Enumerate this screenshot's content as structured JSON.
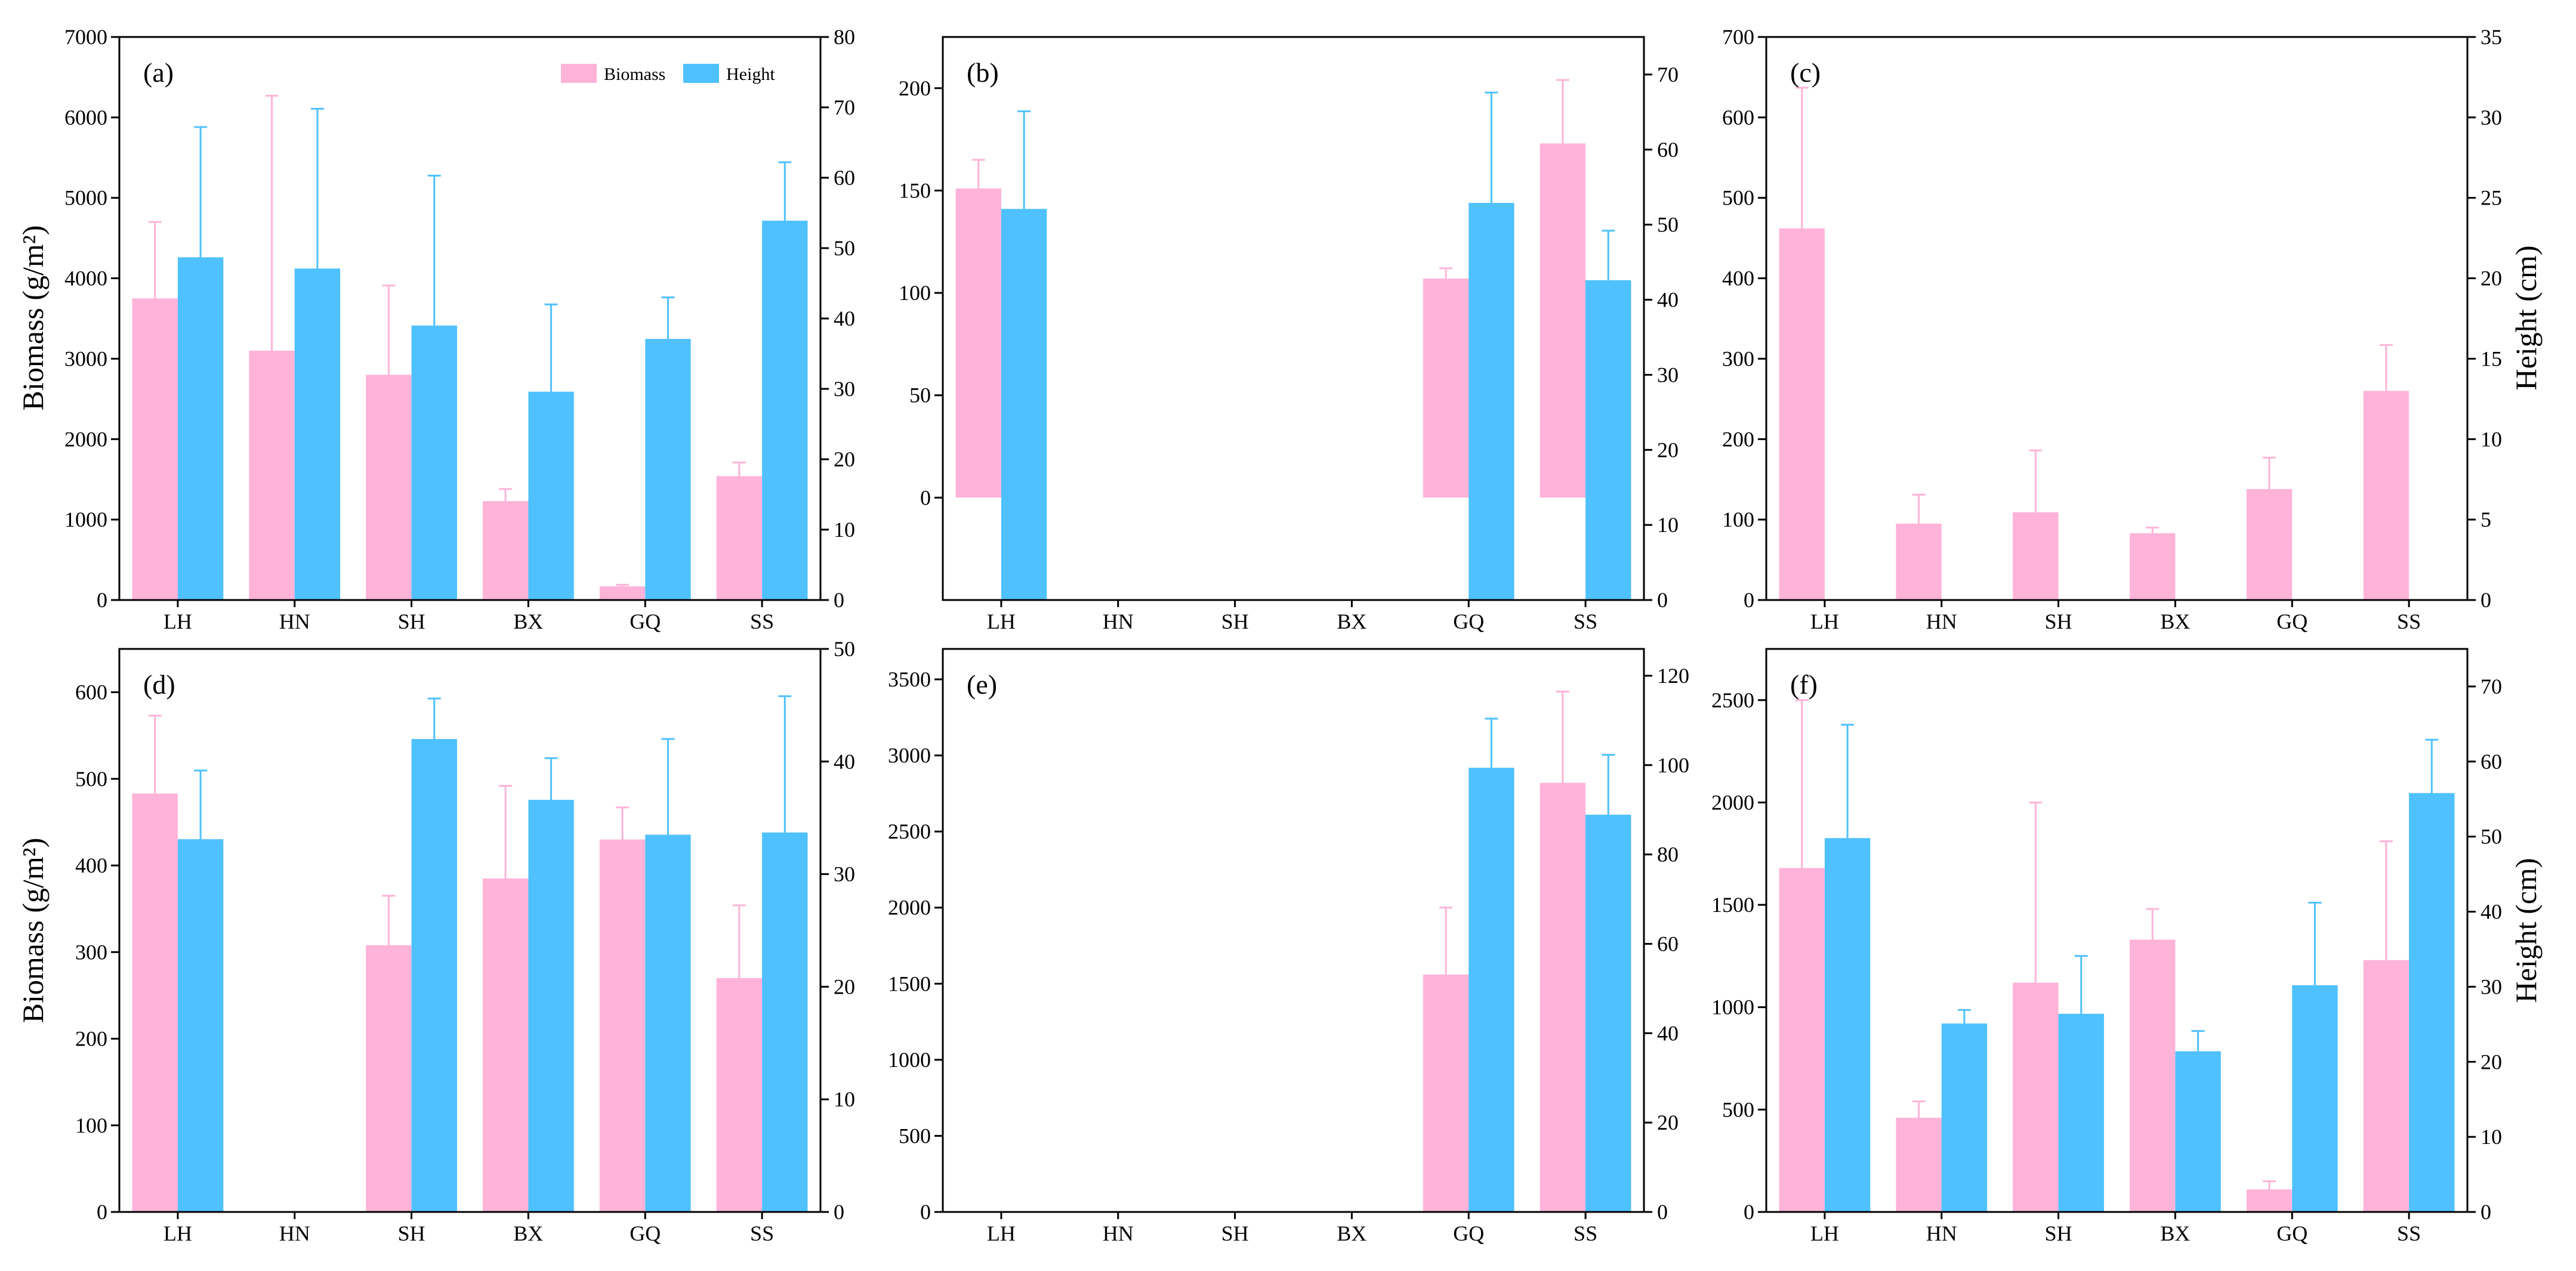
{
  "colors": {
    "biomass": "#FFB3D9",
    "height": "#4FC1FF",
    "axis": "#000000"
  },
  "legend": {
    "position": "top-right",
    "panel": 0,
    "biomass": "Biomass",
    "height": "Height"
  },
  "axis_titles": {
    "top_left_ylabel": "Biomass (g/m²)",
    "bottom_left_ylabel": "Biomass (g/m²)",
    "top_right_ylabel": "Height (cm)",
    "bottom_right_ylabel": "Height (cm)"
  },
  "chart_data": [
    {
      "type": "bar",
      "label": "(a)",
      "categories": [
        "LH",
        "HN",
        "SH",
        "BX",
        "GQ",
        "SS"
      ],
      "ylim": [
        0,
        7000
      ],
      "yticks": [
        0,
        1000,
        2000,
        3000,
        4000,
        5000,
        6000,
        7000
      ],
      "y2lim": [
        0,
        80
      ],
      "y2ticks": [
        0,
        10,
        20,
        30,
        40,
        50,
        60,
        70,
        80
      ],
      "series": [
        {
          "name": "Biomass",
          "axis": "left",
          "values": [
            3750,
            3100,
            2800,
            1230,
            170,
            1540
          ],
          "errors": [
            950,
            3170,
            1110,
            150,
            20,
            170
          ]
        },
        {
          "name": "Height",
          "axis": "right",
          "values": [
            48.7,
            47.1,
            39.0,
            29.6,
            37.1,
            53.9
          ],
          "errors": [
            18.5,
            22.7,
            21.3,
            12.4,
            5.9,
            8.3
          ]
        }
      ]
    },
    {
      "type": "bar",
      "label": "(b)",
      "categories": [
        "LH",
        "HN",
        "SH",
        "BX",
        "GQ",
        "SS"
      ],
      "ylim": [
        -50,
        225
      ],
      "yticks": [
        0,
        50,
        100,
        150,
        200
      ],
      "y2lim": [
        0,
        75
      ],
      "y2ticks": [
        0,
        10,
        20,
        30,
        40,
        50,
        60,
        70
      ],
      "series": [
        {
          "name": "Biomass",
          "axis": "left",
          "values": [
            151,
            null,
            null,
            null,
            107,
            173
          ],
          "errors": [
            14,
            null,
            null,
            null,
            5,
            31
          ]
        },
        {
          "name": "Height",
          "axis": "right",
          "values": [
            52.1,
            null,
            null,
            null,
            52.9,
            42.6
          ],
          "errors": [
            13.0,
            null,
            null,
            null,
            14.7,
            6.6
          ]
        }
      ]
    },
    {
      "type": "bar",
      "label": "(c)",
      "categories": [
        "LH",
        "HN",
        "SH",
        "BX",
        "GQ",
        "SS"
      ],
      "ylim": [
        0,
        700
      ],
      "yticks": [
        0,
        100,
        200,
        300,
        400,
        500,
        600,
        700
      ],
      "y2lim": [
        0,
        35
      ],
      "y2ticks": [
        0,
        5,
        10,
        15,
        20,
        25,
        30,
        35
      ],
      "series": [
        {
          "name": "Biomass",
          "axis": "left",
          "values": [
            462,
            95,
            109,
            83,
            138,
            260
          ],
          "errors": [
            175,
            36,
            77,
            7,
            39,
            57
          ]
        },
        {
          "name": "Height",
          "axis": "right",
          "values": [
            null,
            null,
            null,
            null,
            null,
            null
          ],
          "errors": [
            null,
            null,
            null,
            null,
            null,
            null
          ]
        }
      ]
    },
    {
      "type": "bar",
      "label": "(d)",
      "categories": [
        "LH",
        "HN",
        "SH",
        "BX",
        "GQ",
        "SS"
      ],
      "ylim": [
        0,
        650
      ],
      "yticks": [
        0,
        100,
        200,
        300,
        400,
        500,
        600
      ],
      "y2lim": [
        0,
        50
      ],
      "y2ticks": [
        0,
        10,
        20,
        30,
        40,
        50
      ],
      "series": [
        {
          "name": "Biomass",
          "axis": "left",
          "values": [
            483,
            null,
            308,
            385,
            430,
            270
          ],
          "errors": [
            90,
            null,
            57,
            107,
            37,
            84
          ]
        },
        {
          "name": "Height",
          "axis": "right",
          "values": [
            33.1,
            null,
            42.0,
            36.6,
            33.5,
            33.7
          ],
          "errors": [
            6.1,
            null,
            3.6,
            3.7,
            8.5,
            12.1
          ]
        }
      ]
    },
    {
      "type": "bar",
      "label": "(e)",
      "categories": [
        "LH",
        "HN",
        "SH",
        "BX",
        "GQ",
        "SS"
      ],
      "ylim": [
        0,
        3700
      ],
      "yticks": [
        0,
        500,
        1000,
        1500,
        2000,
        2500,
        3000,
        3500
      ],
      "y2lim": [
        0,
        126
      ],
      "y2ticks": [
        0,
        20,
        40,
        60,
        80,
        100,
        120
      ],
      "series": [
        {
          "name": "Biomass",
          "axis": "left",
          "values": [
            null,
            null,
            null,
            null,
            1560,
            2820
          ],
          "errors": [
            null,
            null,
            null,
            null,
            440,
            600
          ]
        },
        {
          "name": "Height",
          "axis": "right",
          "values": [
            null,
            null,
            null,
            null,
            99.4,
            88.9
          ],
          "errors": [
            null,
            null,
            null,
            null,
            11.0,
            13.4
          ]
        }
      ]
    },
    {
      "type": "bar",
      "label": "(f)",
      "categories": [
        "LH",
        "HN",
        "SH",
        "BX",
        "GQ",
        "SS"
      ],
      "ylim": [
        0,
        2750
      ],
      "yticks": [
        0,
        500,
        1000,
        1500,
        2000,
        2500
      ],
      "y2lim": [
        0,
        75
      ],
      "y2ticks": [
        0,
        10,
        20,
        30,
        40,
        50,
        60,
        70
      ],
      "series": [
        {
          "name": "Biomass",
          "axis": "left",
          "values": [
            1680,
            460,
            1120,
            1330,
            110,
            1230
          ],
          "errors": [
            820,
            80,
            880,
            150,
            40,
            580
          ]
        },
        {
          "name": "Height",
          "axis": "right",
          "values": [
            49.8,
            25.1,
            26.4,
            21.4,
            30.2,
            55.8
          ],
          "errors": [
            15.1,
            1.8,
            7.7,
            2.7,
            11.0,
            7.1
          ]
        }
      ]
    }
  ]
}
